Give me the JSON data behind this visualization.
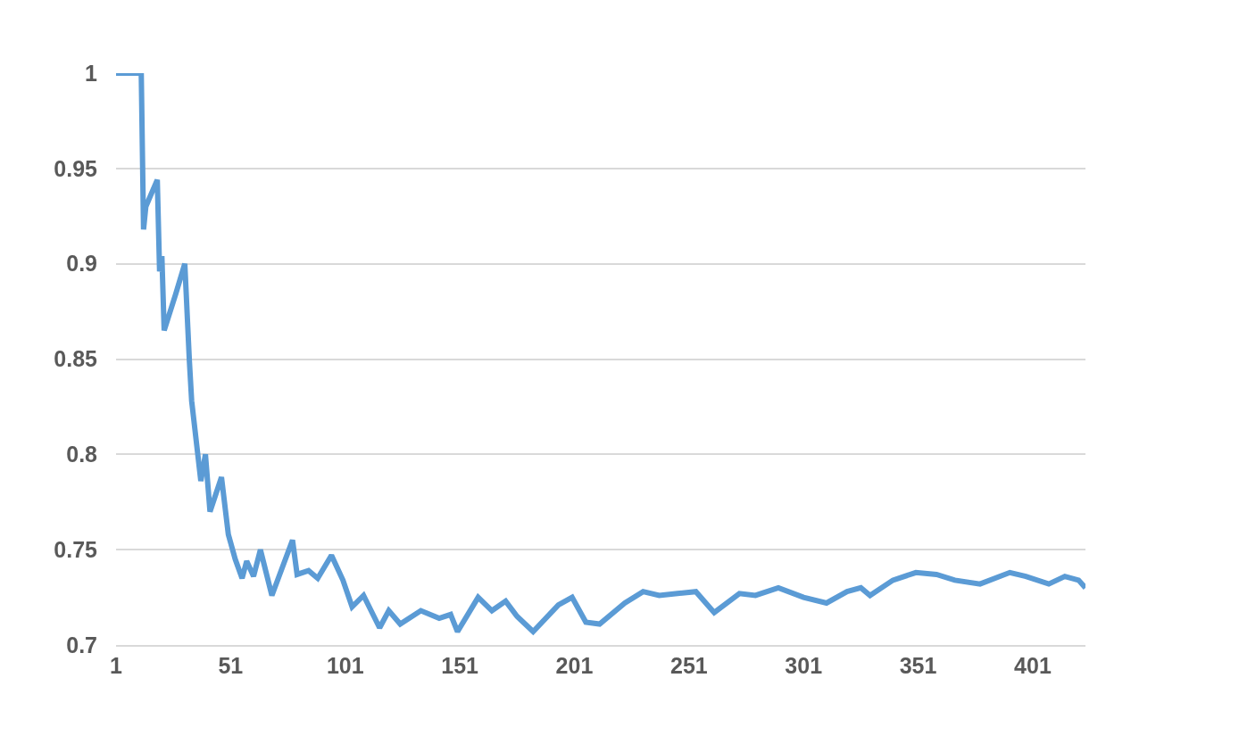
{
  "chart_data": {
    "type": "line",
    "x": [
      1,
      12,
      13,
      14,
      19,
      20,
      21,
      22,
      27,
      31,
      33,
      34,
      38,
      40,
      42,
      47,
      50,
      53,
      56,
      58,
      61,
      64,
      69,
      78,
      80,
      85,
      89,
      95,
      100,
      104,
      109,
      116,
      120,
      125,
      134,
      142,
      147,
      150,
      159,
      165,
      171,
      176,
      183,
      194,
      200,
      206,
      212,
      223,
      231,
      238,
      246,
      254,
      262,
      273,
      280,
      290,
      301,
      311,
      320,
      326,
      330,
      340,
      350,
      359,
      367,
      378,
      391,
      398,
      408,
      415,
      421,
      424
    ],
    "series": [
      {
        "color": "#5b9bd5",
        "values": [
          1,
          1,
          0.918,
          0.93,
          0.944,
          0.896,
          0.904,
          0.865,
          0.884,
          0.9,
          0.849,
          0.828,
          0.786,
          0.8,
          0.77,
          0.788,
          0.758,
          0.745,
          0.735,
          0.744,
          0.736,
          0.75,
          0.726,
          0.755,
          0.737,
          0.739,
          0.735,
          0.747,
          0.734,
          0.72,
          0.726,
          0.709,
          0.718,
          0.711,
          0.718,
          0.714,
          0.716,
          0.707,
          0.725,
          0.718,
          0.723,
          0.715,
          0.707,
          0.721,
          0.725,
          0.712,
          0.711,
          0.722,
          0.728,
          0.726,
          0.727,
          0.728,
          0.717,
          0.727,
          0.726,
          0.73,
          0.725,
          0.722,
          0.728,
          0.73,
          0.726,
          0.734,
          0.738,
          0.737,
          0.734,
          0.732,
          0.738,
          0.736,
          0.732,
          0.736,
          0.734,
          0.73
        ]
      }
    ],
    "xlim": [
      1,
      424
    ],
    "xticks": [
      1,
      51,
      101,
      151,
      201,
      251,
      301,
      351,
      401
    ],
    "ylim": [
      0.7,
      1
    ],
    "yticks": [
      0.7,
      0.75,
      0.8,
      0.85,
      0.9,
      0.95,
      1
    ],
    "grid": "y",
    "marker": "none",
    "line_style": "solid"
  }
}
